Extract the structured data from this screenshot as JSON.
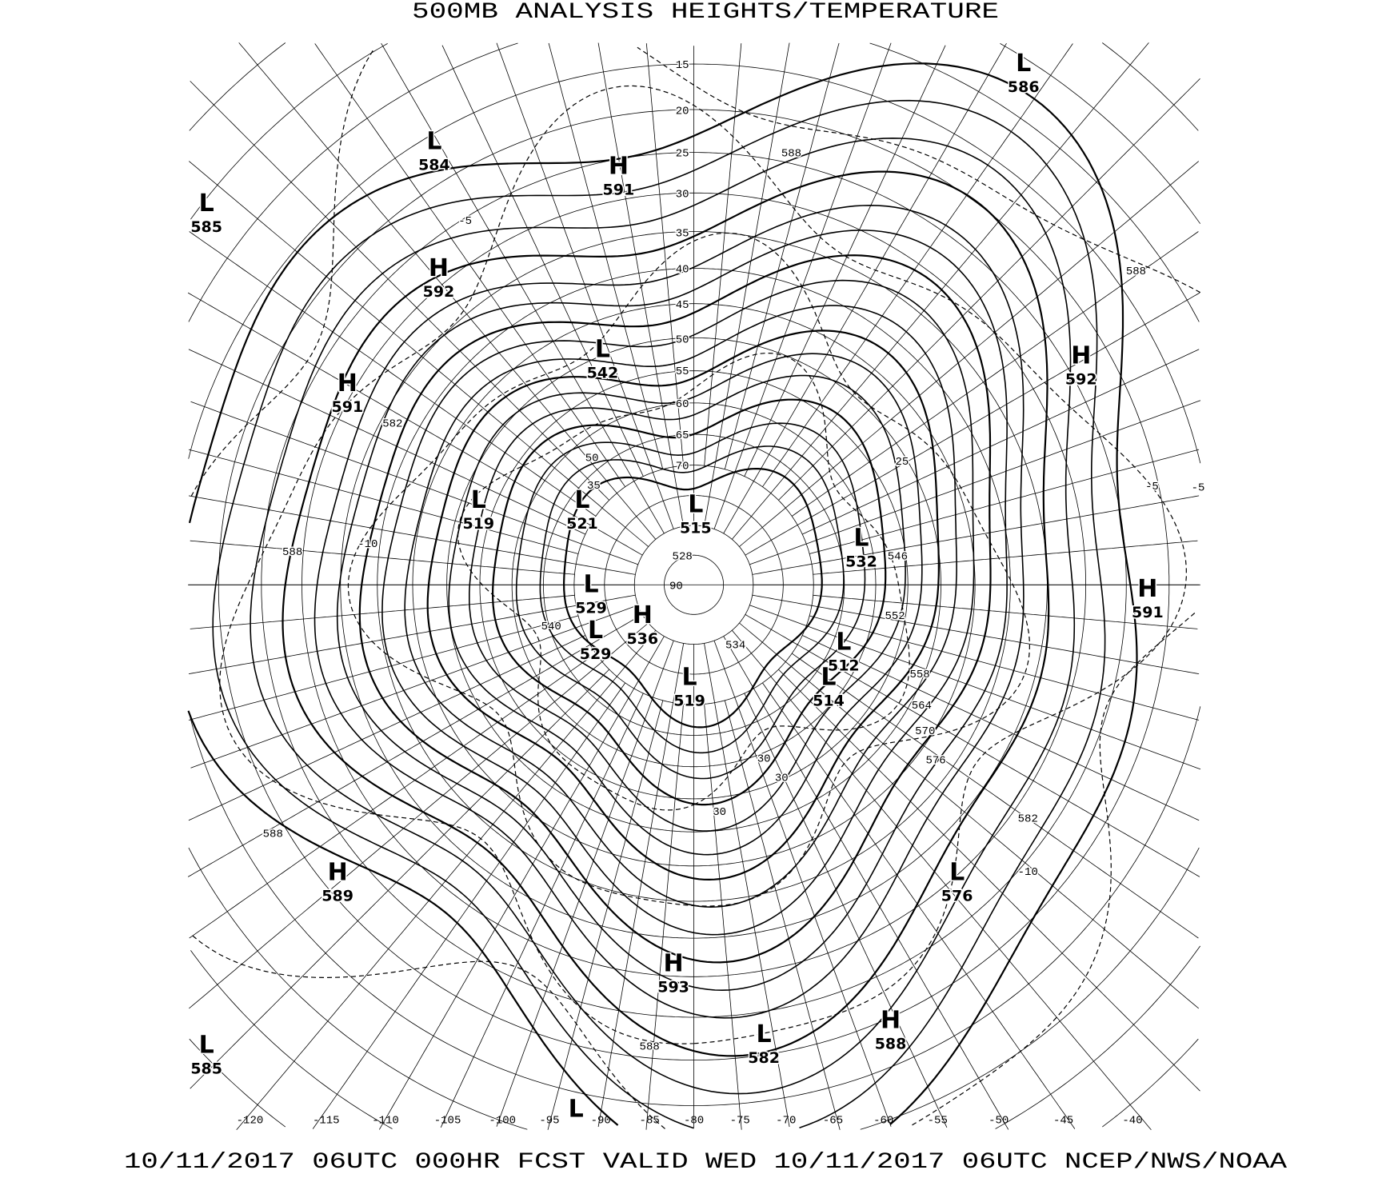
{
  "title": "500MB ANALYSIS  HEIGHTS/TEMPERATURE",
  "footer": "10/11/2017 06UTC 000HR FCST VALID WED 10/11/2017 06UTC  NCEP/NWS/NOAA",
  "projection": "polar-stereographic",
  "latitude_labels": [
    "15",
    "20",
    "25",
    "30",
    "35",
    "40",
    "45",
    "50",
    "55",
    "60",
    "65",
    "70",
    "90"
  ],
  "longitude_labels": [
    "-120",
    "-115",
    "-110",
    "-105",
    "-100",
    "-95",
    "-90",
    "-85",
    "-80",
    "-75",
    "-70",
    "-65",
    "-60",
    "-55",
    "-50",
    "-45",
    "-40"
  ],
  "pressure_centers": [
    {
      "type": "L",
      "value": "584"
    },
    {
      "type": "H",
      "value": "591"
    },
    {
      "type": "L",
      "value": "585"
    },
    {
      "type": "H",
      "value": "592"
    },
    {
      "type": "L",
      "value": "586"
    },
    {
      "type": "H",
      "value": "592"
    },
    {
      "type": "L",
      "value": "542"
    },
    {
      "type": "H",
      "value": "591"
    },
    {
      "type": "L",
      "value": "519"
    },
    {
      "type": "L",
      "value": "521"
    },
    {
      "type": "L",
      "value": "515"
    },
    {
      "type": "L",
      "value": "532"
    },
    {
      "type": "L",
      "value": "529"
    },
    {
      "type": "H",
      "value": "536"
    },
    {
      "type": "L",
      "value": "529"
    },
    {
      "type": "L",
      "value": "512"
    },
    {
      "type": "L",
      "value": "514"
    },
    {
      "type": "L",
      "value": "519"
    },
    {
      "type": "H",
      "value": "591"
    },
    {
      "type": "H",
      "value": "589"
    },
    {
      "type": "L",
      "value": "576"
    },
    {
      "type": "H",
      "value": "593"
    },
    {
      "type": "L",
      "value": "582"
    },
    {
      "type": "H",
      "value": "588"
    },
    {
      "type": "L",
      "value": "585"
    },
    {
      "type": "L",
      "value": ""
    }
  ],
  "contour_labels": [
    "588",
    "588",
    "588",
    "582",
    "576",
    "570",
    "564",
    "558",
    "552",
    "546",
    "540",
    "534",
    "528",
    "582",
    "588",
    "588",
    "-5",
    "-5",
    "-10",
    "-10",
    "-5",
    "25",
    "30",
    "30",
    "30",
    "35",
    "50"
  ],
  "colors": {
    "lines": "#000000",
    "background": "#ffffff"
  }
}
